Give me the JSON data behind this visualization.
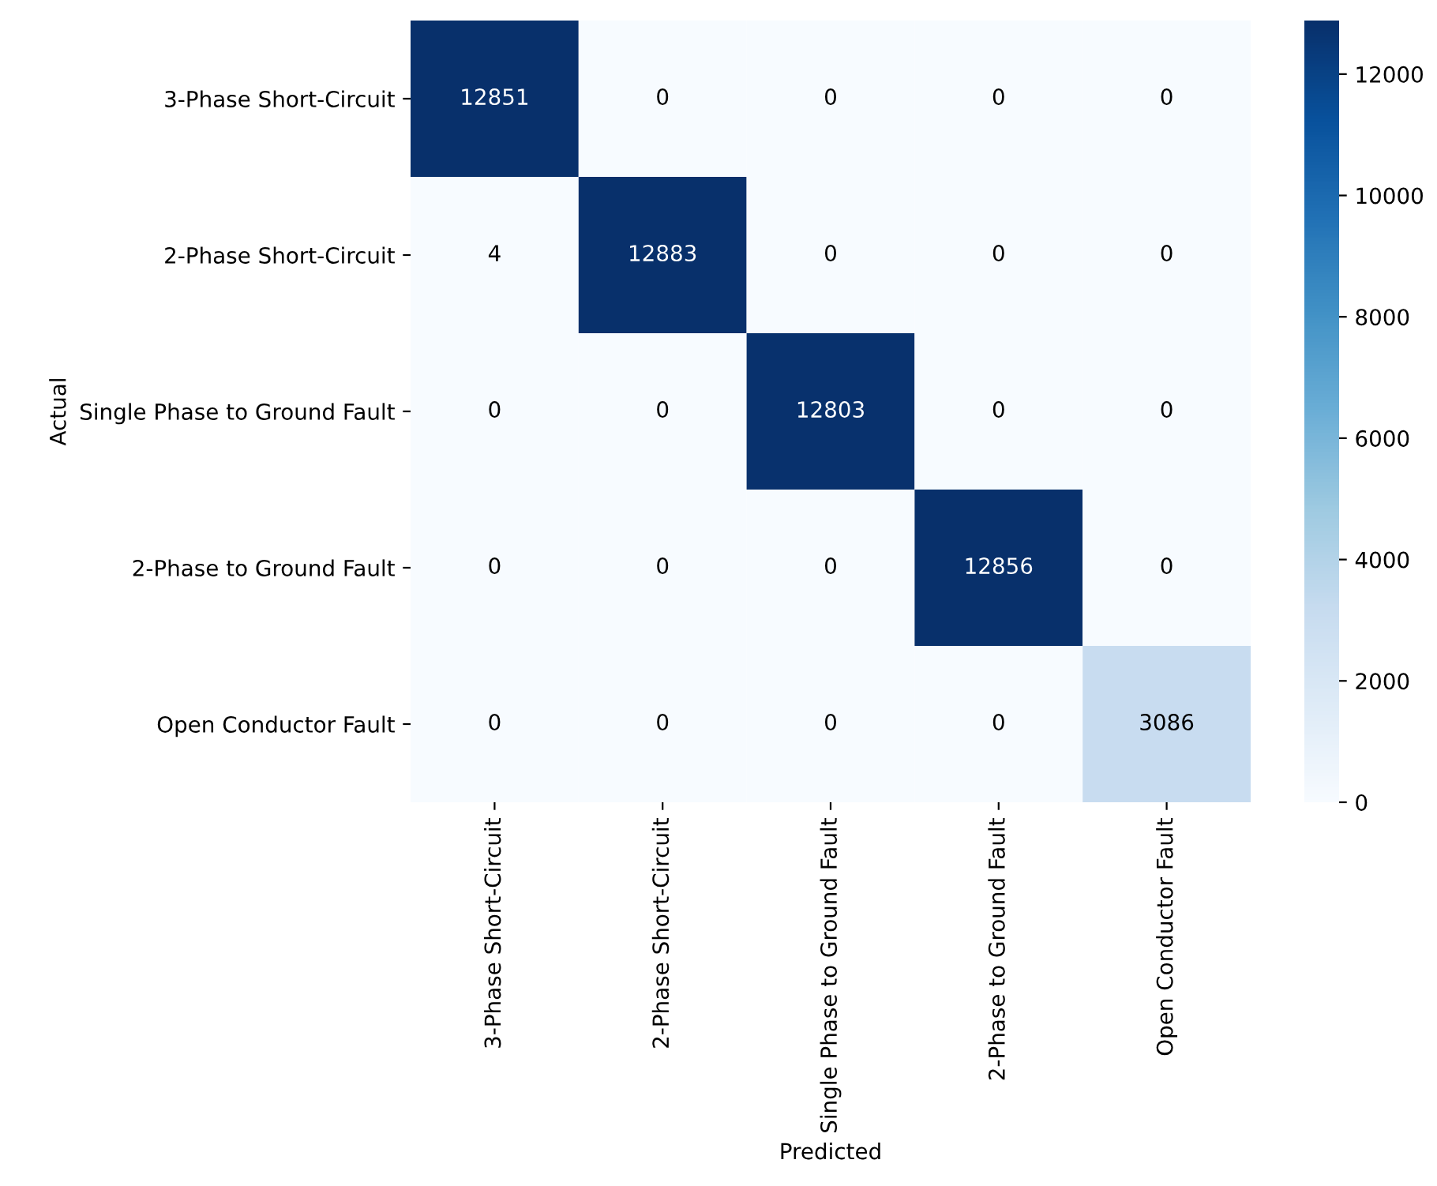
{
  "chart_data": {
    "type": "heatmap",
    "xlabel": "Predicted",
    "ylabel": "Actual",
    "categories": [
      "3-Phase Short-Circuit",
      "2-Phase Short-Circuit",
      "Single Phase to Ground Fault",
      "2-Phase to Ground Fault",
      "Open Conductor Fault"
    ],
    "y_categories": [
      "3-Phase Short-Circuit",
      "2-Phase Short-Circuit",
      "Single Phase to Ground Fault",
      "2-Phase to Ground Fault",
      "Open Conductor Fault"
    ],
    "cells": [
      [
        12851,
        0,
        0,
        0,
        0
      ],
      [
        4,
        12883,
        0,
        0,
        0
      ],
      [
        0,
        0,
        12803,
        0,
        0
      ],
      [
        0,
        0,
        0,
        12856,
        0
      ],
      [
        0,
        0,
        0,
        0,
        3086
      ]
    ],
    "clim": [
      0,
      12883
    ],
    "cticks": [
      0,
      2000,
      4000,
      6000,
      8000,
      10000,
      12000
    ],
    "data_labels": true
  }
}
